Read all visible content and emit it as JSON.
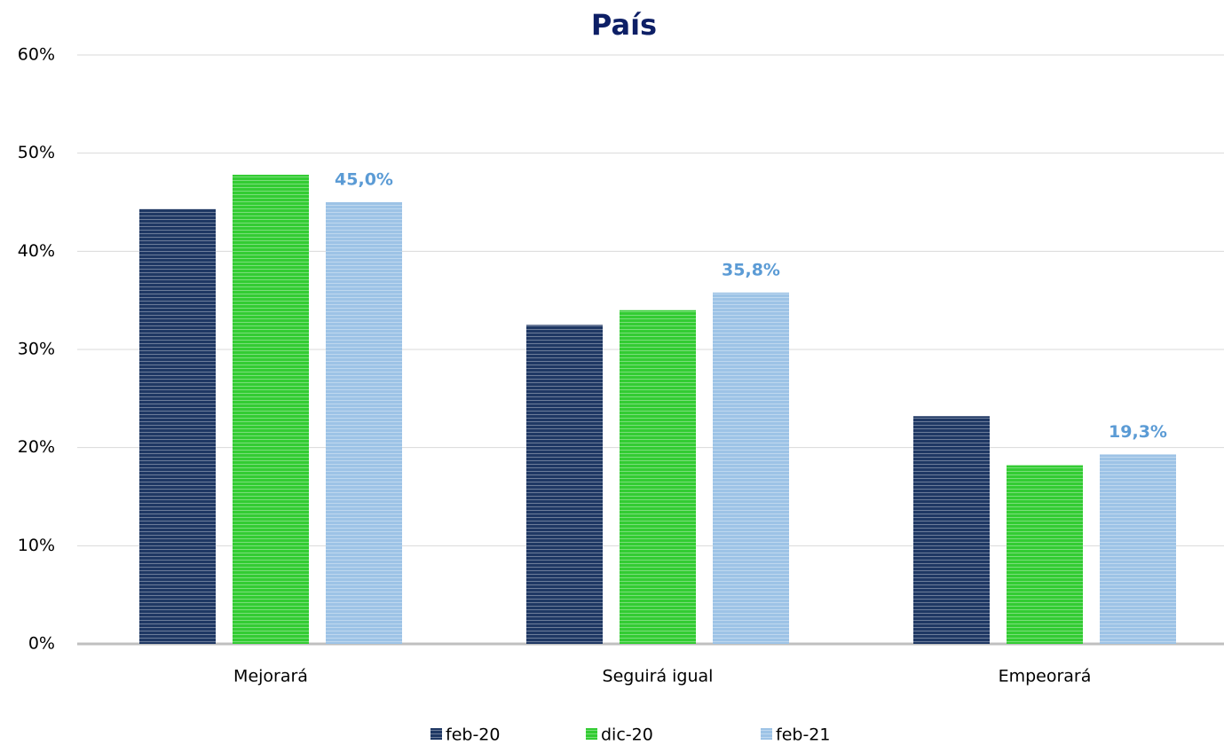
{
  "chart_data": {
    "type": "bar",
    "title": "País",
    "categories": [
      "Mejorará",
      "Seguirá igual",
      "Empeorará"
    ],
    "series": [
      {
        "name": "feb-20",
        "color": "#1f3864",
        "values": [
          44.3,
          32.5,
          23.2
        ]
      },
      {
        "name": "dic-20",
        "color": "#33cc33",
        "values": [
          47.8,
          34.0,
          18.2
        ]
      },
      {
        "name": "feb-21",
        "color": "#9dc3e6",
        "values": [
          45.0,
          35.8,
          19.3
        ],
        "value_labels": [
          "45,0%",
          "35,8%",
          "19,3%"
        ]
      }
    ],
    "ylim": [
      0,
      60
    ],
    "yticks": [
      {
        "value": 0,
        "label": "0%"
      },
      {
        "value": 10,
        "label": "10%"
      },
      {
        "value": 20,
        "label": "20%"
      },
      {
        "value": 30,
        "label": "30%"
      },
      {
        "value": 40,
        "label": "40%"
      },
      {
        "value": 50,
        "label": "50%"
      },
      {
        "value": 60,
        "label": "60%"
      }
    ],
    "grid": true,
    "legend": "bottom"
  }
}
